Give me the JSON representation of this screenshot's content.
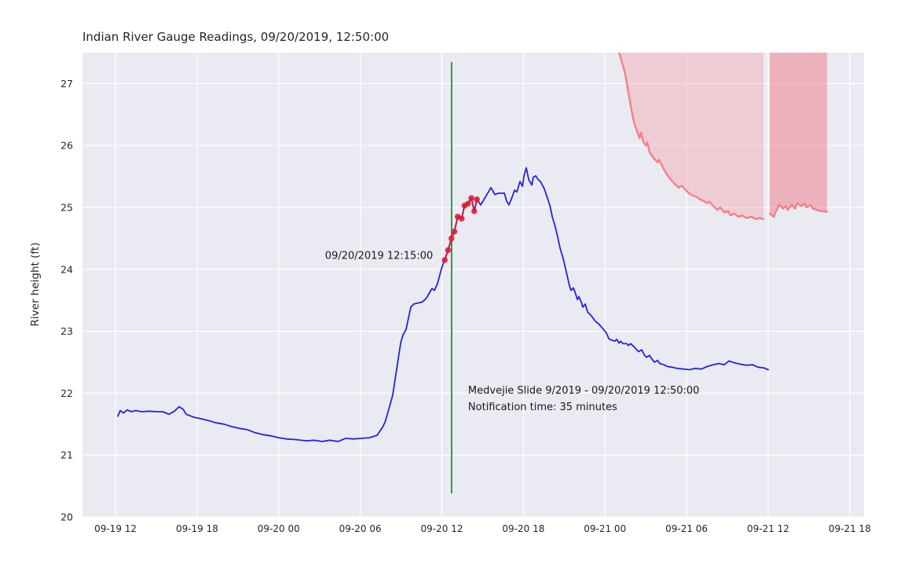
{
  "chart_data": {
    "type": "line",
    "title": "Indian River Gauge Readings, 09/20/2019, 12:50:00",
    "xlabel": "",
    "ylabel": "River height (ft)",
    "grid": true,
    "legend_position": "none",
    "background_color": "#eaeaf2",
    "grid_color": "#ffffff",
    "x_unit": "hours since 09-19 12:00",
    "xlim": [
      -2.43,
      55.05
    ],
    "ylim": [
      20,
      27.5
    ],
    "yticks": [
      20,
      21,
      22,
      23,
      24,
      25,
      26,
      27
    ],
    "xticks": {
      "hours": [
        0,
        6,
        12,
        18,
        24,
        30,
        36,
        42,
        48,
        54
      ],
      "labels": [
        "09-19 12",
        "09-19 18",
        "09-20 00",
        "09-20 06",
        "09-20 12",
        "09-20 18",
        "09-21 00",
        "09-21 06",
        "09-21 12",
        "09-21 18"
      ]
    },
    "series": [
      {
        "name": "river-gauge-observed",
        "type": "line",
        "color": "#2424dc",
        "width": 1.8,
        "points": [
          [
            0.17,
            21.63
          ],
          [
            0.35,
            21.72
          ],
          [
            0.58,
            21.68
          ],
          [
            0.87,
            21.73
          ],
          [
            1.16,
            21.7
          ],
          [
            1.5,
            21.72
          ],
          [
            1.91,
            21.7
          ],
          [
            2.48,
            21.71
          ],
          [
            3.06,
            21.7
          ],
          [
            3.47,
            21.7
          ],
          [
            3.93,
            21.66
          ],
          [
            4.33,
            21.71
          ],
          [
            4.68,
            21.78
          ],
          [
            4.97,
            21.74
          ],
          [
            5.2,
            21.66
          ],
          [
            5.78,
            21.61
          ],
          [
            6.24,
            21.59
          ],
          [
            6.82,
            21.56
          ],
          [
            7.4,
            21.52
          ],
          [
            7.97,
            21.5
          ],
          [
            8.55,
            21.46
          ],
          [
            9.13,
            21.43
          ],
          [
            9.71,
            21.41
          ],
          [
            10.28,
            21.36
          ],
          [
            10.86,
            21.33
          ],
          [
            11.44,
            21.31
          ],
          [
            12.02,
            21.28
          ],
          [
            12.6,
            21.26
          ],
          [
            13.29,
            21.25
          ],
          [
            14.04,
            21.23
          ],
          [
            14.62,
            21.24
          ],
          [
            15.19,
            21.22
          ],
          [
            15.77,
            21.24
          ],
          [
            16.35,
            21.22
          ],
          [
            16.93,
            21.27
          ],
          [
            17.5,
            21.26
          ],
          [
            18.08,
            21.27
          ],
          [
            18.66,
            21.28
          ],
          [
            19.24,
            21.32
          ],
          [
            19.64,
            21.45
          ],
          [
            19.82,
            21.53
          ],
          [
            20.11,
            21.75
          ],
          [
            20.39,
            21.97
          ],
          [
            20.68,
            22.39
          ],
          [
            20.97,
            22.81
          ],
          [
            21.14,
            22.94
          ],
          [
            21.37,
            23.03
          ],
          [
            21.55,
            23.22
          ],
          [
            21.72,
            23.39
          ],
          [
            21.95,
            23.44
          ],
          [
            22.12,
            23.45
          ],
          [
            22.53,
            23.47
          ],
          [
            22.7,
            23.5
          ],
          [
            22.88,
            23.54
          ],
          [
            23.11,
            23.63
          ],
          [
            23.28,
            23.69
          ],
          [
            23.45,
            23.66
          ],
          [
            23.68,
            23.77
          ],
          [
            23.86,
            23.92
          ],
          [
            24.03,
            24.05
          ],
          [
            24.21,
            24.15
          ],
          [
            24.46,
            24.31
          ],
          [
            24.71,
            24.5
          ],
          [
            24.92,
            24.61
          ],
          [
            25.17,
            24.85
          ],
          [
            25.46,
            24.82
          ],
          [
            25.67,
            25.03
          ],
          [
            25.92,
            25.06
          ],
          [
            26.17,
            25.15
          ],
          [
            26.38,
            24.94
          ],
          [
            26.58,
            25.13
          ],
          [
            26.86,
            25.04
          ],
          [
            27.21,
            25.17
          ],
          [
            27.61,
            25.32
          ],
          [
            27.9,
            25.21
          ],
          [
            28.19,
            25.23
          ],
          [
            28.6,
            25.23
          ],
          [
            28.77,
            25.1
          ],
          [
            28.94,
            25.04
          ],
          [
            29.23,
            25.2
          ],
          [
            29.35,
            25.28
          ],
          [
            29.52,
            25.25
          ],
          [
            29.75,
            25.42
          ],
          [
            29.93,
            25.34
          ],
          [
            30.04,
            25.51
          ],
          [
            30.21,
            25.64
          ],
          [
            30.39,
            25.45
          ],
          [
            30.62,
            25.36
          ],
          [
            30.73,
            25.49
          ],
          [
            30.91,
            25.51
          ],
          [
            31.08,
            25.45
          ],
          [
            31.25,
            25.42
          ],
          [
            31.54,
            25.3
          ],
          [
            31.77,
            25.15
          ],
          [
            31.95,
            25.03
          ],
          [
            32.12,
            24.85
          ],
          [
            32.35,
            24.68
          ],
          [
            32.52,
            24.52
          ],
          [
            32.7,
            24.34
          ],
          [
            32.93,
            24.17
          ],
          [
            33.16,
            23.95
          ],
          [
            33.39,
            23.73
          ],
          [
            33.51,
            23.66
          ],
          [
            33.68,
            23.7
          ],
          [
            33.8,
            23.63
          ],
          [
            33.97,
            23.51
          ],
          [
            34.08,
            23.56
          ],
          [
            34.26,
            23.47
          ],
          [
            34.37,
            23.39
          ],
          [
            34.55,
            23.44
          ],
          [
            34.72,
            23.31
          ],
          [
            34.95,
            23.26
          ],
          [
            35.3,
            23.16
          ],
          [
            35.53,
            23.12
          ],
          [
            35.82,
            23.05
          ],
          [
            36.11,
            22.97
          ],
          [
            36.28,
            22.88
          ],
          [
            36.45,
            22.86
          ],
          [
            36.74,
            22.84
          ],
          [
            36.86,
            22.87
          ],
          [
            37.03,
            22.81
          ],
          [
            37.15,
            22.84
          ],
          [
            37.32,
            22.8
          ],
          [
            37.61,
            22.8
          ],
          [
            37.72,
            22.77
          ],
          [
            37.9,
            22.8
          ],
          [
            38.13,
            22.75
          ],
          [
            38.3,
            22.71
          ],
          [
            38.47,
            22.67
          ],
          [
            38.71,
            22.7
          ],
          [
            38.88,
            22.62
          ],
          [
            39.05,
            22.58
          ],
          [
            39.28,
            22.61
          ],
          [
            39.45,
            22.55
          ],
          [
            39.63,
            22.5
          ],
          [
            39.86,
            22.53
          ],
          [
            40.03,
            22.48
          ],
          [
            40.32,
            22.46
          ],
          [
            40.61,
            22.43
          ],
          [
            40.9,
            22.42
          ],
          [
            41.31,
            22.4
          ],
          [
            41.77,
            22.39
          ],
          [
            42.23,
            22.38
          ],
          [
            42.63,
            22.4
          ],
          [
            43.1,
            22.39
          ],
          [
            43.5,
            22.43
          ],
          [
            43.96,
            22.46
          ],
          [
            44.37,
            22.48
          ],
          [
            44.77,
            22.46
          ],
          [
            45.12,
            22.52
          ],
          [
            45.52,
            22.49
          ],
          [
            45.93,
            22.47
          ],
          [
            46.39,
            22.45
          ],
          [
            46.85,
            22.46
          ],
          [
            47.25,
            22.42
          ],
          [
            47.66,
            22.41
          ],
          [
            48.01,
            22.38
          ]
        ]
      },
      {
        "name": "watch-readings",
        "type": "line+markers",
        "color": "rgba(220,20,60,0.8)",
        "marker_color": "rgba(222,24,48,0.85)",
        "marker_radius": 3.8,
        "width": 2,
        "points": [
          [
            24.21,
            24.15
          ],
          [
            24.46,
            24.31
          ],
          [
            24.71,
            24.5
          ],
          [
            24.92,
            24.61
          ],
          [
            25.17,
            24.85
          ],
          [
            25.46,
            24.82
          ],
          [
            25.67,
            25.03
          ],
          [
            25.92,
            25.06
          ],
          [
            26.17,
            25.15
          ],
          [
            26.38,
            24.94
          ],
          [
            26.58,
            25.13
          ]
        ]
      },
      {
        "name": "forecast-segment-1",
        "type": "line",
        "color": "#f48086",
        "width": 2.4,
        "fill_to_top": true,
        "fill_color": "rgba(244,128,134,0.28)",
        "points": [
          [
            36.9,
            27.6
          ],
          [
            37.45,
            27.19
          ],
          [
            37.6,
            27.01
          ],
          [
            37.9,
            26.63
          ],
          [
            38.13,
            26.38
          ],
          [
            38.42,
            26.19
          ],
          [
            38.54,
            26.12
          ],
          [
            38.65,
            26.21
          ],
          [
            38.82,
            26.06
          ],
          [
            39.0,
            26.0
          ],
          [
            39.11,
            26.05
          ],
          [
            39.28,
            25.89
          ],
          [
            39.57,
            25.8
          ],
          [
            39.86,
            25.73
          ],
          [
            39.98,
            25.77
          ],
          [
            40.27,
            25.64
          ],
          [
            40.55,
            25.53
          ],
          [
            40.84,
            25.45
          ],
          [
            41.13,
            25.38
          ],
          [
            41.42,
            25.32
          ],
          [
            41.65,
            25.35
          ],
          [
            41.94,
            25.28
          ],
          [
            42.17,
            25.23
          ],
          [
            42.46,
            25.19
          ],
          [
            42.75,
            25.17
          ],
          [
            42.98,
            25.13
          ],
          [
            43.21,
            25.11
          ],
          [
            43.5,
            25.07
          ],
          [
            43.68,
            25.09
          ],
          [
            43.97,
            25.02
          ],
          [
            44.25,
            24.96
          ],
          [
            44.48,
            25.0
          ],
          [
            44.77,
            24.92
          ],
          [
            45.06,
            24.94
          ],
          [
            45.23,
            24.87
          ],
          [
            45.52,
            24.9
          ],
          [
            45.81,
            24.85
          ],
          [
            46.1,
            24.87
          ],
          [
            46.39,
            24.83
          ],
          [
            46.8,
            24.85
          ],
          [
            47.08,
            24.81
          ],
          [
            47.37,
            24.83
          ],
          [
            47.66,
            24.81
          ]
        ]
      },
      {
        "name": "forecast-segment-2",
        "type": "line",
        "color": "#f48086",
        "width": 2.4,
        "fill_to_top": true,
        "fill_color": "rgba(240,108,118,0.45)",
        "points": [
          [
            48.12,
            24.9
          ],
          [
            48.41,
            24.85
          ],
          [
            48.58,
            24.94
          ],
          [
            48.81,
            25.04
          ],
          [
            49.1,
            24.98
          ],
          [
            49.27,
            25.02
          ],
          [
            49.45,
            24.96
          ],
          [
            49.74,
            25.04
          ],
          [
            49.97,
            24.98
          ],
          [
            50.14,
            25.07
          ],
          [
            50.43,
            25.02
          ],
          [
            50.66,
            25.06
          ],
          [
            50.83,
            25.0
          ],
          [
            51.12,
            25.04
          ],
          [
            51.29,
            24.98
          ],
          [
            51.58,
            24.96
          ],
          [
            51.87,
            24.94
          ],
          [
            52.33,
            24.93
          ]
        ]
      }
    ],
    "annotations": {
      "slide_vline": {
        "hours": 24.72,
        "v_from": 20.38,
        "v_to": 27.35,
        "color": "#2f9e3b",
        "width": 2
      },
      "watch_label": {
        "text": "09/20/2019 12:15:00",
        "anchor_hours": 23.35,
        "anchor_value": 24.21,
        "align": "right"
      },
      "slide_label": {
        "line1": "Medvejie Slide 9/2019 - 09/20/2019 12:50:00",
        "line2": "Notification time: 35 minutes",
        "anchor_hours": 25.93,
        "anchor_value": 22.17,
        "align": "left"
      }
    },
    "tick_label_color": "#262626",
    "title_color": "#262626"
  }
}
